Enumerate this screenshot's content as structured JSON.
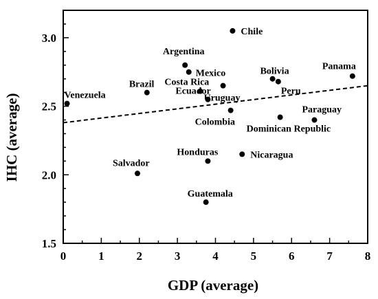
{
  "chart_data": {
    "type": "scatter",
    "xlabel": "GDP (average)",
    "ylabel": "IHC (average)",
    "xlim": [
      0,
      8
    ],
    "ylim": [
      1.5,
      3.2
    ],
    "xticks": [
      "0",
      "1",
      "2",
      "3",
      "4",
      "5",
      "6",
      "7",
      "8"
    ],
    "yticks": [
      "1.5",
      "2.0",
      "2.5",
      "3.0"
    ],
    "points": [
      {
        "label": "Chile",
        "x": 4.45,
        "y": 3.05
      },
      {
        "label": "Argentina",
        "x": 3.2,
        "y": 2.8
      },
      {
        "label": "Mexico",
        "x": 3.3,
        "y": 2.75
      },
      {
        "label": "Bolivia",
        "x": 5.5,
        "y": 2.7
      },
      {
        "label": "Panama",
        "x": 7.6,
        "y": 2.72
      },
      {
        "label": "Peru",
        "x": 5.65,
        "y": 2.68
      },
      {
        "label": "Brazil",
        "x": 2.2,
        "y": 2.6
      },
      {
        "label": "Costa Rica",
        "x": 3.6,
        "y": 2.61
      },
      {
        "label": "Uruguay",
        "x": 4.2,
        "y": 2.65
      },
      {
        "label": "Venezuela",
        "x": 0.1,
        "y": 2.52
      },
      {
        "label": "Ecuador",
        "x": 3.8,
        "y": 2.55
      },
      {
        "label": "Colombia",
        "x": 4.4,
        "y": 2.47
      },
      {
        "label": "Paraguay",
        "x": 6.6,
        "y": 2.4
      },
      {
        "label": "Dominican Republic",
        "x": 5.7,
        "y": 2.42
      },
      {
        "label": "Honduras",
        "x": 3.8,
        "y": 2.1
      },
      {
        "label": "Nicaragua",
        "x": 4.7,
        "y": 2.15
      },
      {
        "label": "Salvador",
        "x": 1.95,
        "y": 2.01
      },
      {
        "label": "Guatemala",
        "x": 3.75,
        "y": 1.8
      }
    ],
    "trendline": {
      "style": "dashed",
      "x": [
        0,
        8
      ],
      "y": [
        2.38,
        2.65
      ]
    },
    "grid": false
  }
}
